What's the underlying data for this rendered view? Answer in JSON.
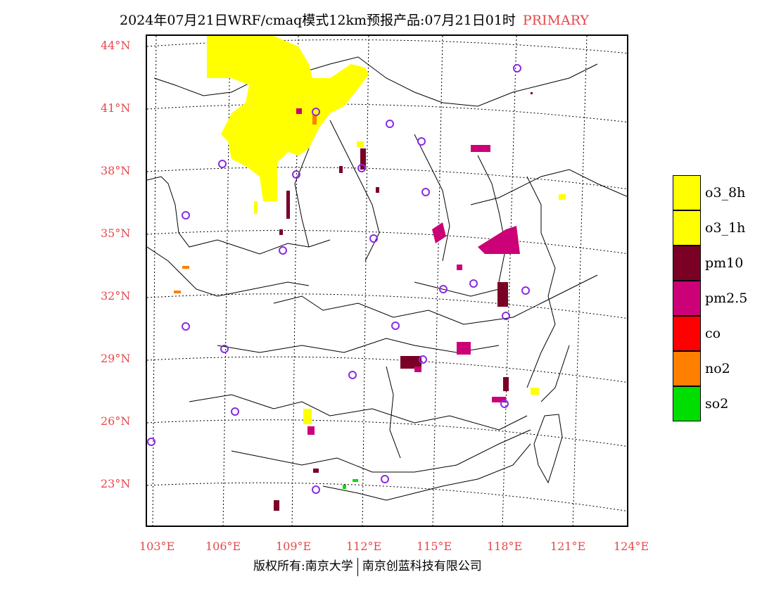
{
  "title": {
    "text": "2024年07月21日WRF/cmaq模式12km预报产品:07月21日01时",
    "status": "PRIMARY"
  },
  "map": {
    "lat_labels": [
      "44°N",
      "41°N",
      "38°N",
      "35°N",
      "32°N",
      "29°N",
      "26°N",
      "23°N"
    ],
    "lon_labels": [
      "103°E",
      "106°E",
      "109°E",
      "112°E",
      "115°E",
      "118°E",
      "121°E",
      "124°E"
    ]
  },
  "legend": {
    "items": [
      {
        "label": "o3_8h",
        "color": "#ffff00"
      },
      {
        "label": "o3_1h",
        "color": "#ffff00"
      },
      {
        "label": "pm10",
        "color": "#7a0026"
      },
      {
        "label": "pm2.5",
        "color": "#cc0077"
      },
      {
        "label": "co",
        "color": "#ff0000"
      },
      {
        "label": "no2",
        "color": "#ff7f00"
      },
      {
        "label": "so2",
        "color": "#00dd00"
      }
    ]
  },
  "footer": {
    "left": "版权所有:南京大学",
    "right": "南京创蓝科技有限公司"
  },
  "colors": {
    "accent": "#e8474a",
    "station": "#8a2be2"
  }
}
